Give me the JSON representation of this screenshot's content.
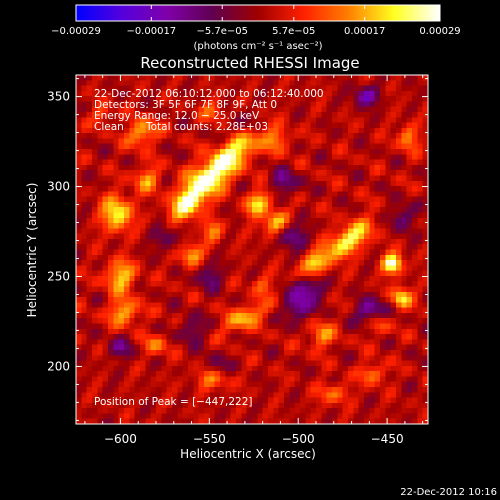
{
  "chart_data": {
    "type": "heatmap",
    "title": "Reconstructed RHESSI Image",
    "xlabel": "Heliocentric X (arcsec)",
    "ylabel": "Heliocentric Y (arcsec)",
    "xlim": [
      -625,
      -427
    ],
    "ylim": [
      168,
      362
    ],
    "x_ticks": [
      -600,
      -550,
      -500,
      -450
    ],
    "x_tick_labels": [
      "−600",
      "−550",
      "−500",
      "−450"
    ],
    "y_ticks": [
      200,
      250,
      300,
      350
    ],
    "y_tick_labels": [
      "200",
      "250",
      "300",
      "350"
    ],
    "colorbar": {
      "range": [
        -0.00029,
        0.00029
      ],
      "tick_values": [
        -0.00029,
        -0.00017,
        -5.7e-05,
        5.7e-05,
        0.00017,
        0.00029
      ],
      "tick_labels": [
        "−0.00029",
        "−0.00017",
        "−5.7e−05",
        "5.7e−05",
        "0.00017",
        "0.00029"
      ],
      "units": "(photons cm⁻² s⁻¹ asec⁻²)",
      "colors": [
        "#0000ff",
        "#5500dd",
        "#8000aa",
        "#600050",
        "#a00000",
        "#ff2000",
        "#ff8000",
        "#ffff20",
        "#ffffff"
      ]
    },
    "annotations": {
      "time_range": "22-Dec-2012 06:10:12.000 to 06:12:40.000",
      "detectors": "Detectors: 3F 5F 6F 7F 8F 9F, Att 0",
      "energy_range": "Energy Range: 12.0 − 25.0 keV",
      "clean_label": "Clean",
      "total_counts": "Total counts: 2.28E+03",
      "peak_position": "Position of Peak = [−447,222]"
    },
    "grid": false,
    "legend": "colorbar-top",
    "blobs": [
      {
        "x": -548,
        "y": 307,
        "amp": 1.0,
        "sx": 14,
        "sy": 6,
        "rot": 40
      },
      {
        "x": -562,
        "y": 290,
        "amp": 0.7,
        "sx": 8,
        "sy": 5,
        "rot": 40
      },
      {
        "x": -530,
        "y": 325,
        "amp": 0.75,
        "sx": 8,
        "sy": 5,
        "rot": 40
      },
      {
        "x": -588,
        "y": 330,
        "amp": 0.6,
        "sx": 6,
        "sy": 5,
        "rot": 30
      },
      {
        "x": -585,
        "y": 304,
        "amp": 0.5,
        "sx": 5,
        "sy": 5,
        "rot": 0
      },
      {
        "x": -512,
        "y": 326,
        "amp": 0.45,
        "sx": 5,
        "sy": 5,
        "rot": 0
      },
      {
        "x": -522,
        "y": 291,
        "amp": 0.7,
        "sx": 6,
        "sy": 4,
        "rot": 45
      },
      {
        "x": -513,
        "y": 280,
        "amp": 0.6,
        "sx": 6,
        "sy": 4,
        "rot": 45
      },
      {
        "x": -472,
        "y": 270,
        "amp": 0.75,
        "sx": 12,
        "sy": 5,
        "rot": 35
      },
      {
        "x": -492,
        "y": 256,
        "amp": 0.55,
        "sx": 7,
        "sy": 4,
        "rot": 35
      },
      {
        "x": -447,
        "y": 257,
        "amp": 0.95,
        "sx": 4,
        "sy": 4,
        "rot": 0
      },
      {
        "x": -442,
        "y": 238,
        "amp": 0.75,
        "sx": 4,
        "sy": 4,
        "rot": 0
      },
      {
        "x": -602,
        "y": 285,
        "amp": 0.75,
        "sx": 6,
        "sy": 7,
        "rot": 0
      },
      {
        "x": -600,
        "y": 250,
        "amp": 0.65,
        "sx": 6,
        "sy": 6,
        "rot": 0
      },
      {
        "x": -598,
        "y": 230,
        "amp": 0.6,
        "sx": 6,
        "sy": 5,
        "rot": 0
      },
      {
        "x": -560,
        "y": 262,
        "amp": 0.55,
        "sx": 5,
        "sy": 4,
        "rot": 40
      },
      {
        "x": -548,
        "y": 275,
        "amp": 0.45,
        "sx": 4,
        "sy": 4,
        "rot": 0
      },
      {
        "x": -530,
        "y": 227,
        "amp": 0.6,
        "sx": 9,
        "sy": 4,
        "rot": 30
      },
      {
        "x": -487,
        "y": 217,
        "amp": 0.5,
        "sx": 5,
        "sy": 5,
        "rot": 0
      },
      {
        "x": -455,
        "y": 225,
        "amp": 0.5,
        "sx": 5,
        "sy": 5,
        "rot": 0
      },
      {
        "x": -458,
        "y": 196,
        "amp": 0.45,
        "sx": 5,
        "sy": 4,
        "rot": 0
      },
      {
        "x": -480,
        "y": 185,
        "amp": 0.4,
        "sx": 6,
        "sy": 4,
        "rot": 0
      },
      {
        "x": -548,
        "y": 193,
        "amp": 0.45,
        "sx": 7,
        "sy": 4,
        "rot": 0
      },
      {
        "x": -580,
        "y": 212,
        "amp": 0.4,
        "sx": 5,
        "sy": 4,
        "rot": 0
      },
      {
        "x": -438,
        "y": 327,
        "amp": 0.5,
        "sx": 4,
        "sy": 5,
        "rot": 0
      },
      {
        "x": -548,
        "y": 342,
        "amp": 0.35,
        "sx": 5,
        "sy": 4,
        "rot": 0
      },
      {
        "x": -610,
        "y": 340,
        "amp": 0.35,
        "sx": 4,
        "sy": 4,
        "rot": 0
      },
      {
        "x": -520,
        "y": 245,
        "amp": 0.35,
        "sx": 4,
        "sy": 4,
        "rot": 0
      },
      {
        "x": -530,
        "y": 330,
        "amp": -0.45,
        "sx": 6,
        "sy": 6,
        "rot": 0
      },
      {
        "x": -508,
        "y": 302,
        "amp": -0.45,
        "sx": 6,
        "sy": 5,
        "rot": 0
      },
      {
        "x": -503,
        "y": 272,
        "amp": -0.45,
        "sx": 6,
        "sy": 5,
        "rot": 0
      },
      {
        "x": -495,
        "y": 243,
        "amp": -0.6,
        "sx": 6,
        "sy": 5,
        "rot": 0
      },
      {
        "x": -500,
        "y": 232,
        "amp": -0.55,
        "sx": 5,
        "sy": 5,
        "rot": 0
      },
      {
        "x": -458,
        "y": 230,
        "amp": -0.75,
        "sx": 6,
        "sy": 5,
        "rot": 0
      },
      {
        "x": -550,
        "y": 250,
        "amp": -0.4,
        "sx": 5,
        "sy": 5,
        "rot": 0
      },
      {
        "x": -442,
        "y": 283,
        "amp": -0.45,
        "sx": 5,
        "sy": 5,
        "rot": 0
      },
      {
        "x": -462,
        "y": 350,
        "amp": -0.6,
        "sx": 5,
        "sy": 4,
        "rot": 0
      },
      {
        "x": -600,
        "y": 210,
        "amp": -0.4,
        "sx": 5,
        "sy": 4,
        "rot": 0
      },
      {
        "x": -575,
        "y": 272,
        "amp": -0.35,
        "sx": 5,
        "sy": 5,
        "rot": 0
      },
      {
        "x": -560,
        "y": 220,
        "amp": -0.4,
        "sx": 5,
        "sy": 5,
        "rot": 0
      },
      {
        "x": -545,
        "y": 200,
        "amp": -0.3,
        "sx": 5,
        "sy": 5,
        "rot": 0
      }
    ]
  },
  "footer": {
    "timestamp": "22-Dec-2012 10:16"
  }
}
